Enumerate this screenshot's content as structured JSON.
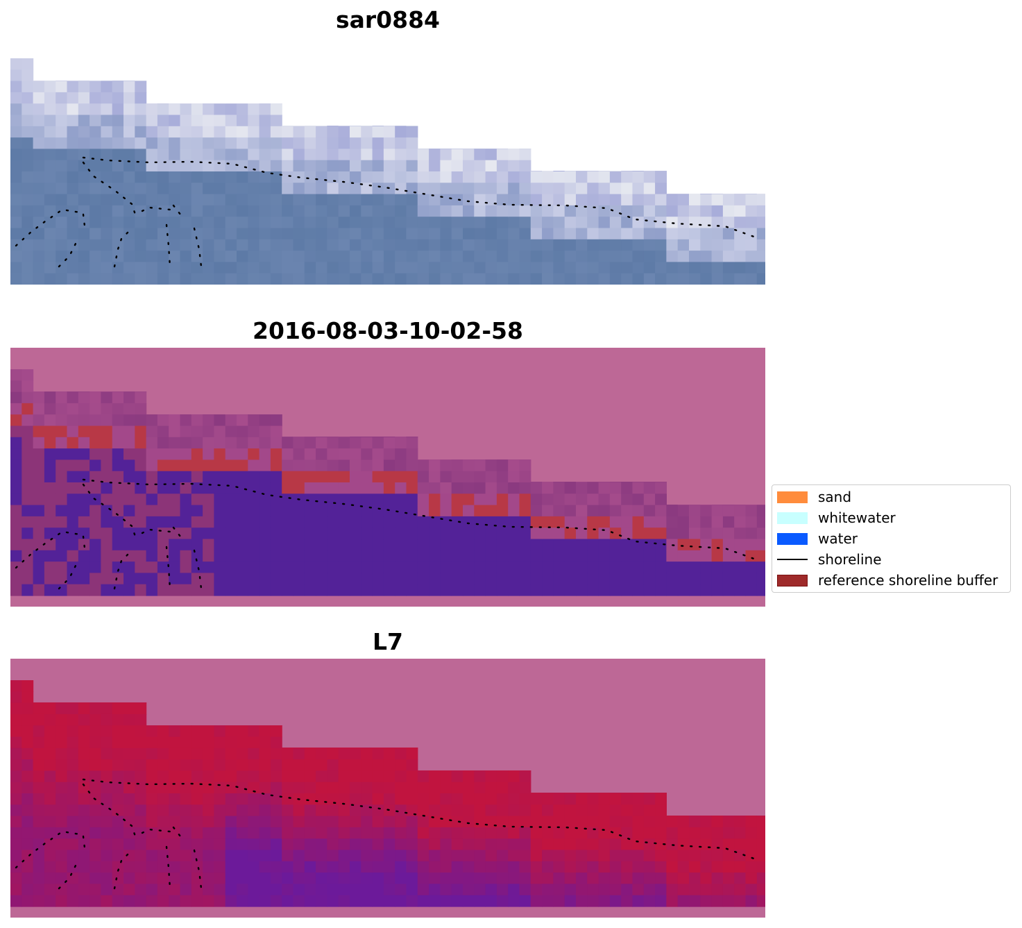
{
  "panels": [
    {
      "id": "rgb",
      "title": "sar0884"
    },
    {
      "id": "classified",
      "title": "2016-08-03-10-02-58"
    },
    {
      "id": "index",
      "title": "L7"
    }
  ],
  "legend": {
    "items": [
      {
        "label": "sand",
        "color": "#ff8c3c",
        "kind": "patch"
      },
      {
        "label": "whitewater",
        "color": "#c8ffff",
        "kind": "patch"
      },
      {
        "label": "water",
        "color": "#0a5aff",
        "kind": "patch"
      },
      {
        "label": "shoreline",
        "color": "#000000",
        "kind": "line"
      },
      {
        "label": "reference shoreline buffer",
        "color": "#9e2a2a",
        "kind": "patch"
      }
    ]
  },
  "colors": {
    "background_pink": "#bd6896",
    "classified_water": "#532298",
    "classified_buffer": "#b83846",
    "classified_land": "#8c3478",
    "rgb_water": "#5d7aa6",
    "rgb_foam": "#c8cde6",
    "index_high": "#c1143f",
    "index_low": "#6c1a9a"
  }
}
